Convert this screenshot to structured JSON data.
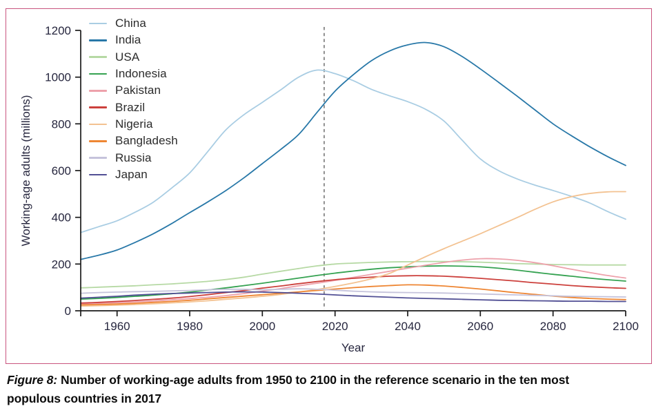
{
  "figure": {
    "caption_prefix": "Figure 8:",
    "caption_text": "Number of working-age adults from 1950 to 2100 in the reference scenario in the ten most populous countries in 2017"
  },
  "style_colors": {
    "frame": "#c9547e",
    "axis": "#1a1a1a",
    "tick_text": "#26263e",
    "legend_text": "#2b2b2b",
    "caption_text": "#0d0d0d",
    "reference_line": "#757575"
  },
  "chart_data": {
    "type": "line",
    "title": "",
    "xlabel": "Year",
    "ylabel": "Working-age adults (millions)",
    "xlim": [
      1950,
      2100
    ],
    "ylim": [
      0,
      1200
    ],
    "x_ticks": [
      1960,
      1980,
      2000,
      2020,
      2040,
      2060,
      2080,
      2100
    ],
    "y_ticks": [
      0,
      200,
      400,
      600,
      800,
      1000,
      1200
    ],
    "grid": false,
    "legend_position": "top-left-inside",
    "reference_line_x": 2017,
    "x": [
      1950,
      1955,
      1960,
      1965,
      1970,
      1975,
      1980,
      1985,
      1990,
      1995,
      2000,
      2005,
      2010,
      2015,
      2020,
      2025,
      2030,
      2035,
      2040,
      2045,
      2050,
      2055,
      2060,
      2065,
      2070,
      2075,
      2080,
      2085,
      2090,
      2095,
      2100
    ],
    "series": [
      {
        "name": "China",
        "color": "#a9cde3",
        "values": [
          335,
          360,
          385,
          422,
          465,
          525,
          590,
          682,
          775,
          840,
          892,
          945,
          1000,
          1030,
          1015,
          985,
          948,
          920,
          895,
          862,
          812,
          730,
          650,
          600,
          565,
          538,
          515,
          490,
          462,
          425,
          392
        ]
      },
      {
        "name": "India",
        "color": "#2878a8",
        "values": [
          220,
          238,
          260,
          293,
          330,
          373,
          420,
          466,
          515,
          570,
          630,
          690,
          755,
          848,
          940,
          1010,
          1070,
          1112,
          1138,
          1148,
          1130,
          1088,
          1035,
          978,
          920,
          860,
          800,
          750,
          703,
          660,
          622
        ]
      },
      {
        "name": "USA",
        "color": "#b6d9a4",
        "values": [
          98,
          101,
          104,
          107,
          111,
          115,
          120,
          126,
          134,
          144,
          157,
          169,
          181,
          192,
          200,
          204,
          207,
          209,
          210,
          211,
          211,
          210,
          208,
          205,
          202,
          200,
          198,
          197,
          196,
          196,
          196
        ]
      },
      {
        "name": "Indonesia",
        "color": "#35a251",
        "values": [
          50,
          53,
          57,
          62,
          67,
          73,
          80,
          89,
          98,
          108,
          118,
          129,
          140,
          151,
          161,
          170,
          178,
          184,
          188,
          191,
          192,
          191,
          188,
          182,
          174,
          165,
          156,
          148,
          140,
          133,
          127
        ]
      },
      {
        "name": "Pakistan",
        "color": "#eda1ab",
        "values": [
          30,
          32,
          35,
          38,
          42,
          47,
          52,
          58,
          65,
          74,
          84,
          95,
          107,
          118,
          130,
          143,
          156,
          169,
          182,
          195,
          207,
          217,
          223,
          222,
          216,
          206,
          193,
          178,
          164,
          151,
          140
        ]
      },
      {
        "name": "Brazil",
        "color": "#cc403c",
        "values": [
          33,
          36,
          40,
          44,
          49,
          54,
          61,
          69,
          78,
          87,
          97,
          106,
          116,
          125,
          133,
          139,
          144,
          148,
          150,
          150,
          148,
          144,
          139,
          133,
          127,
          120,
          114,
          108,
          103,
          99,
          96
        ]
      },
      {
        "name": "Nigeria",
        "color": "#f3c291",
        "values": [
          20,
          22,
          24,
          27,
          30,
          34,
          38,
          43,
          49,
          55,
          62,
          70,
          80,
          91,
          104,
          119,
          137,
          160,
          196,
          232,
          266,
          298,
          330,
          364,
          398,
          434,
          466,
          488,
          502,
          509,
          510
        ]
      },
      {
        "name": "Bangladesh",
        "color": "#ee8633",
        "values": [
          25,
          27,
          29,
          32,
          36,
          40,
          45,
          51,
          57,
          63,
          69,
          75,
          81,
          87,
          93,
          99,
          104,
          108,
          111,
          110,
          106,
          100,
          93,
          85,
          77,
          70,
          63,
          57,
          53,
          50,
          48
        ]
      },
      {
        "name": "Russia",
        "color": "#c5c3db",
        "values": [
          75,
          78,
          80,
          82,
          83,
          85,
          87,
          90,
          92,
          92,
          90,
          92,
          94,
          92,
          88,
          84,
          81,
          79,
          78,
          77,
          76,
          74,
          72,
          70,
          68,
          66,
          64,
          62,
          61,
          60,
          59
        ]
      },
      {
        "name": "Japan",
        "color": "#514f94",
        "values": [
          54,
          58,
          62,
          67,
          71,
          74,
          76,
          78,
          80,
          81,
          80,
          78,
          75,
          72,
          68,
          64,
          61,
          58,
          55,
          53,
          51,
          49,
          47,
          45,
          44,
          43,
          42,
          41,
          41,
          40,
          40
        ]
      }
    ]
  }
}
